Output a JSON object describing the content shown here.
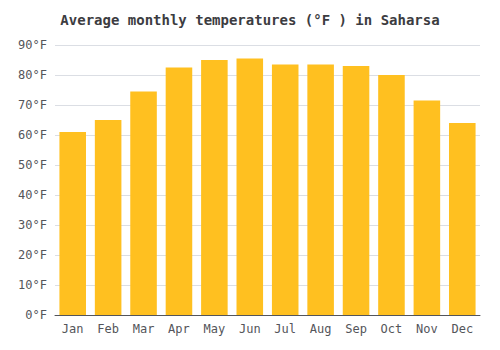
{
  "chart_data": {
    "type": "bar",
    "title": "Average monthly temperatures (°F ) in Saharsa",
    "categories": [
      "Jan",
      "Feb",
      "Mar",
      "Apr",
      "May",
      "Jun",
      "Jul",
      "Aug",
      "Sep",
      "Oct",
      "Nov",
      "Dec"
    ],
    "values": [
      61,
      65,
      74.5,
      82.5,
      85,
      85.5,
      83.5,
      83.5,
      83,
      80,
      71.5,
      64
    ],
    "color": "#FFC020",
    "ylim": [
      0,
      90
    ],
    "yticks": [
      {
        "value": 0,
        "label": "0°F"
      },
      {
        "value": 10,
        "label": "10°F"
      },
      {
        "value": 20,
        "label": "20°F"
      },
      {
        "value": 30,
        "label": "30°F"
      },
      {
        "value": 40,
        "label": "40°F"
      },
      {
        "value": 50,
        "label": "50°F"
      },
      {
        "value": 60,
        "label": "60°F"
      },
      {
        "value": 70,
        "label": "70°F"
      },
      {
        "value": 80,
        "label": "80°F"
      },
      {
        "value": 90,
        "label": "90°F"
      }
    ],
    "grid": true
  }
}
